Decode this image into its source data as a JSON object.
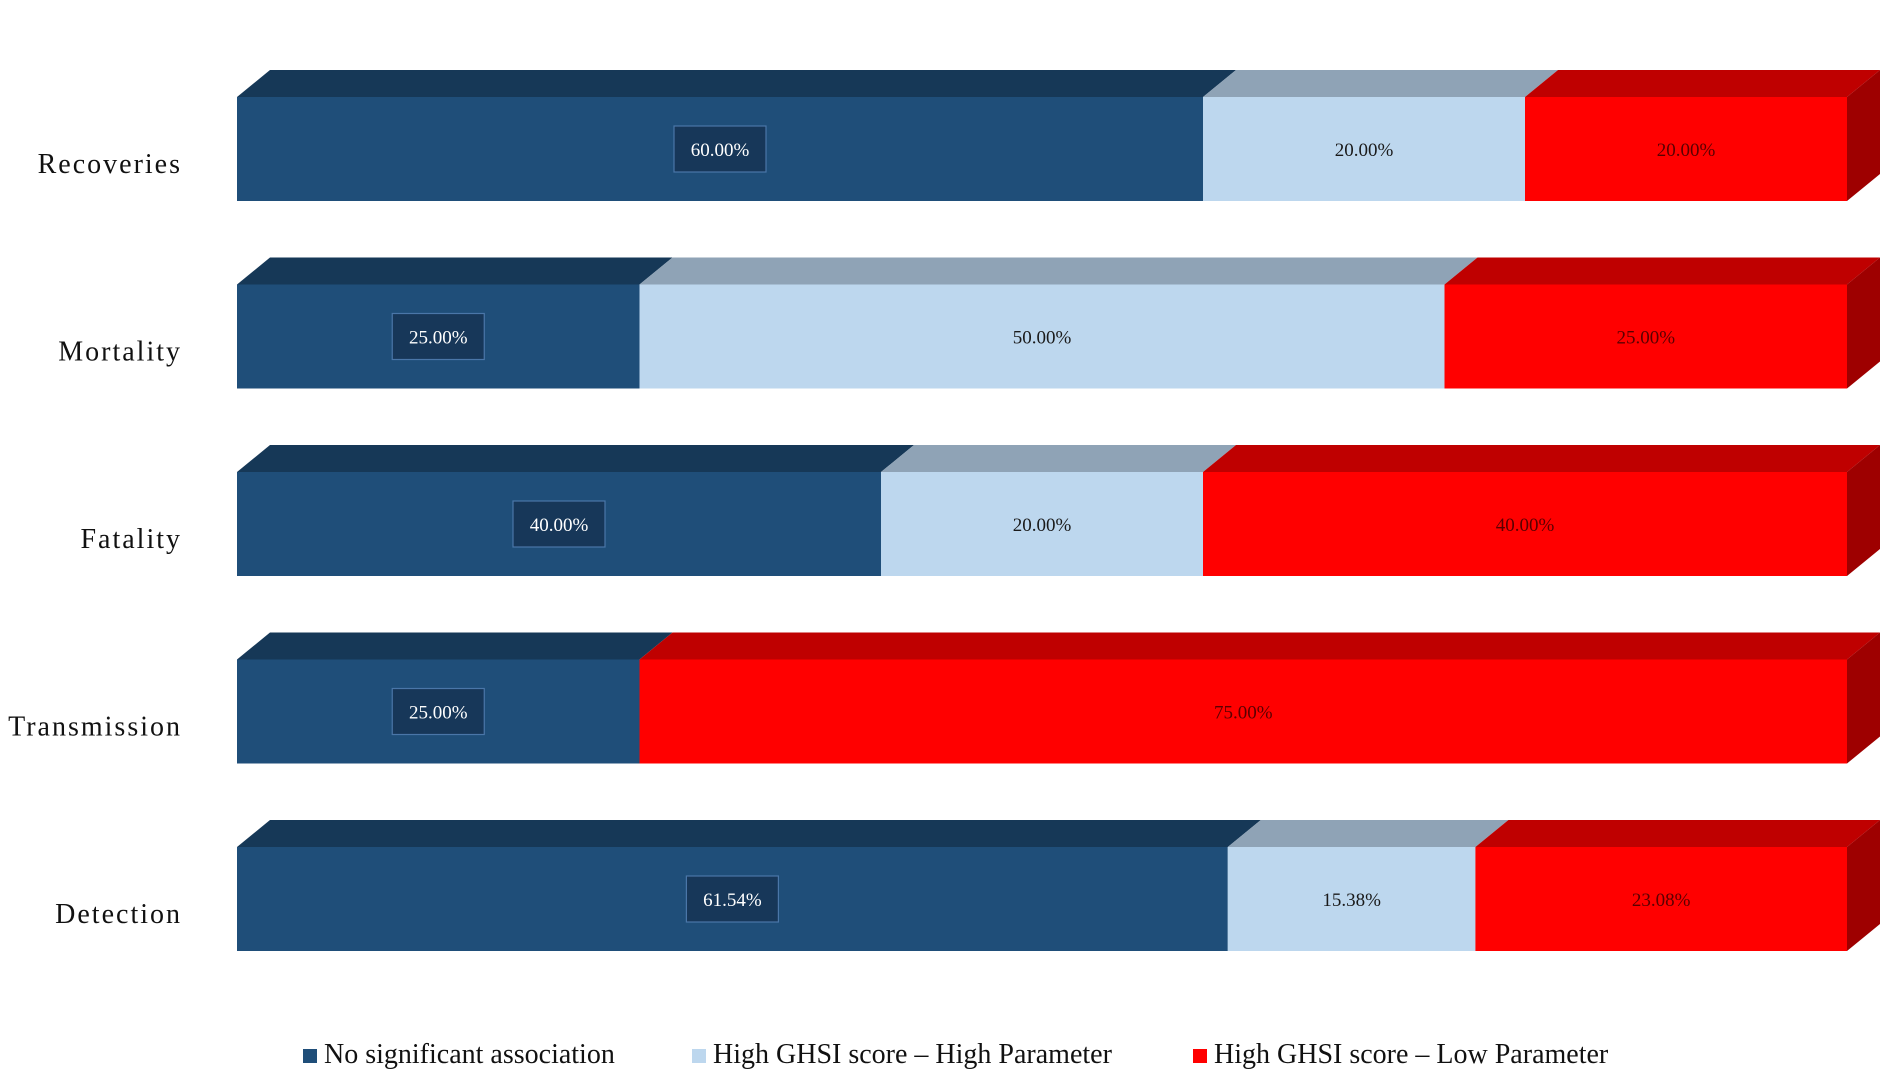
{
  "chart_data": {
    "type": "bar",
    "orientation": "horizontal",
    "stacked": true,
    "normalized": true,
    "style": "3d",
    "title": "",
    "xlabel": "",
    "ylabel": "",
    "grid": false,
    "legend_position": "bottom",
    "categories": [
      "Recoveries",
      "Mortality",
      "Fatality",
      "Transmission",
      "Detection"
    ],
    "series": [
      {
        "name": "No significant association",
        "color": "#1F4E79",
        "values": [
          60.0,
          25.0,
          40.0,
          25.0,
          61.54
        ],
        "labels": [
          "60.00%",
          "25.00%",
          "40.00%",
          "25.00%",
          "61.54%"
        ]
      },
      {
        "name": "High GHSI score – High Parameter",
        "color": "#BDD7EE",
        "values": [
          20.0,
          50.0,
          20.0,
          0,
          15.38
        ],
        "labels": [
          "20.00%",
          "50.00%",
          "20.00%",
          "",
          "15.38%"
        ]
      },
      {
        "name": "High GHSI score – Low Parameter",
        "color": "#FF0000",
        "values": [
          20.0,
          25.0,
          40.0,
          75.0,
          23.08
        ],
        "labels": [
          "20.00%",
          "25.00%",
          "40.00%",
          "75.00%",
          "23.08%"
        ]
      }
    ]
  }
}
